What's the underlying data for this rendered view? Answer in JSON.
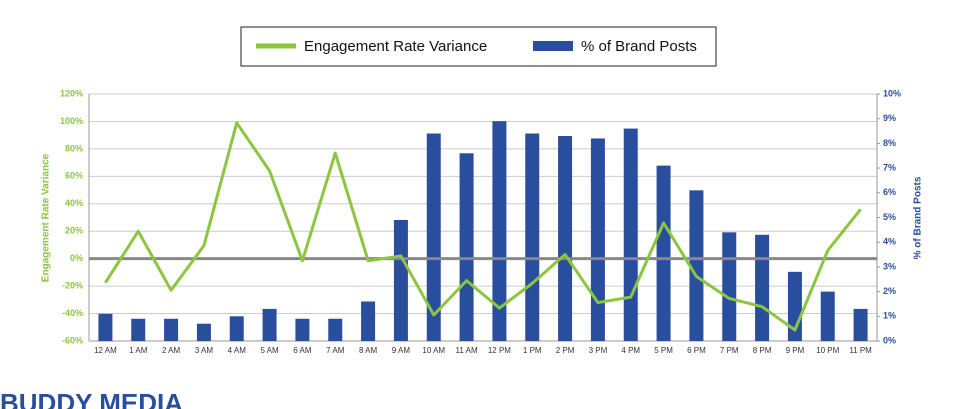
{
  "chart_data": {
    "type": "combo",
    "categories": [
      "12 AM",
      "1 AM",
      "2 AM",
      "3 AM",
      "4 AM",
      "5 AM",
      "6 AM",
      "7 AM",
      "8 AM",
      "9 AM",
      "10 AM",
      "11 AM",
      "12 PM",
      "1 PM",
      "2 PM",
      "3 PM",
      "4 PM",
      "5 PM",
      "6 PM",
      "7 PM",
      "8 PM",
      "9 PM",
      "10 PM",
      "11 PM"
    ],
    "series": [
      {
        "name": "Engagement Rate Variance",
        "type": "line",
        "color": "#8cc63f",
        "values": [
          -17.5,
          20,
          -23,
          9.5,
          99,
          64,
          -1.5,
          77,
          -1.5,
          2,
          -41,
          -16,
          -36,
          -18,
          3,
          -32,
          -28,
          26,
          -13,
          -29,
          -35,
          -52,
          6,
          36
        ]
      },
      {
        "name": "% of Brand Posts",
        "type": "bar",
        "axis": "y2",
        "color": "#2a4e9e",
        "values": [
          1.1,
          0.9,
          0.9,
          0.7,
          1.0,
          1.3,
          0.9,
          0.9,
          1.6,
          4.9,
          8.4,
          7.6,
          8.9,
          8.4,
          8.3,
          8.2,
          8.6,
          7.1,
          6.1,
          4.4,
          4.3,
          2.8,
          2.0,
          1.3
        ]
      }
    ],
    "y_label": "Engagement Rate Variance",
    "y2_label": "% of Brand Posts",
    "ylim": [
      -60,
      120
    ],
    "yticks": [
      {
        "value": -60,
        "label": "-60%"
      },
      {
        "value": -40,
        "label": "-40%"
      },
      {
        "value": -20,
        "label": "-20%"
      },
      {
        "value": 0,
        "label": "0%"
      },
      {
        "value": 20,
        "label": "20%"
      },
      {
        "value": 40,
        "label": "40%"
      },
      {
        "value": 60,
        "label": "60%"
      },
      {
        "value": 80,
        "label": "80%"
      },
      {
        "value": 100,
        "label": "100%"
      },
      {
        "value": 120,
        "label": "120%"
      }
    ],
    "y2lim": [
      0,
      10
    ],
    "y2ticks": [
      {
        "value": 0,
        "label": "0%"
      },
      {
        "value": 1,
        "label": "1%"
      },
      {
        "value": 2,
        "label": "2%"
      },
      {
        "value": 3,
        "label": "3%"
      },
      {
        "value": 4,
        "label": "4%"
      },
      {
        "value": 5,
        "label": "5%"
      },
      {
        "value": 6,
        "label": "6%"
      },
      {
        "value": 7,
        "label": "7%"
      },
      {
        "value": 8,
        "label": "8%"
      },
      {
        "value": 9,
        "label": "9%"
      },
      {
        "value": 10,
        "label": "10%"
      }
    ],
    "grid": true,
    "legend": "top",
    "logo": "BUDDY MEDIA"
  }
}
